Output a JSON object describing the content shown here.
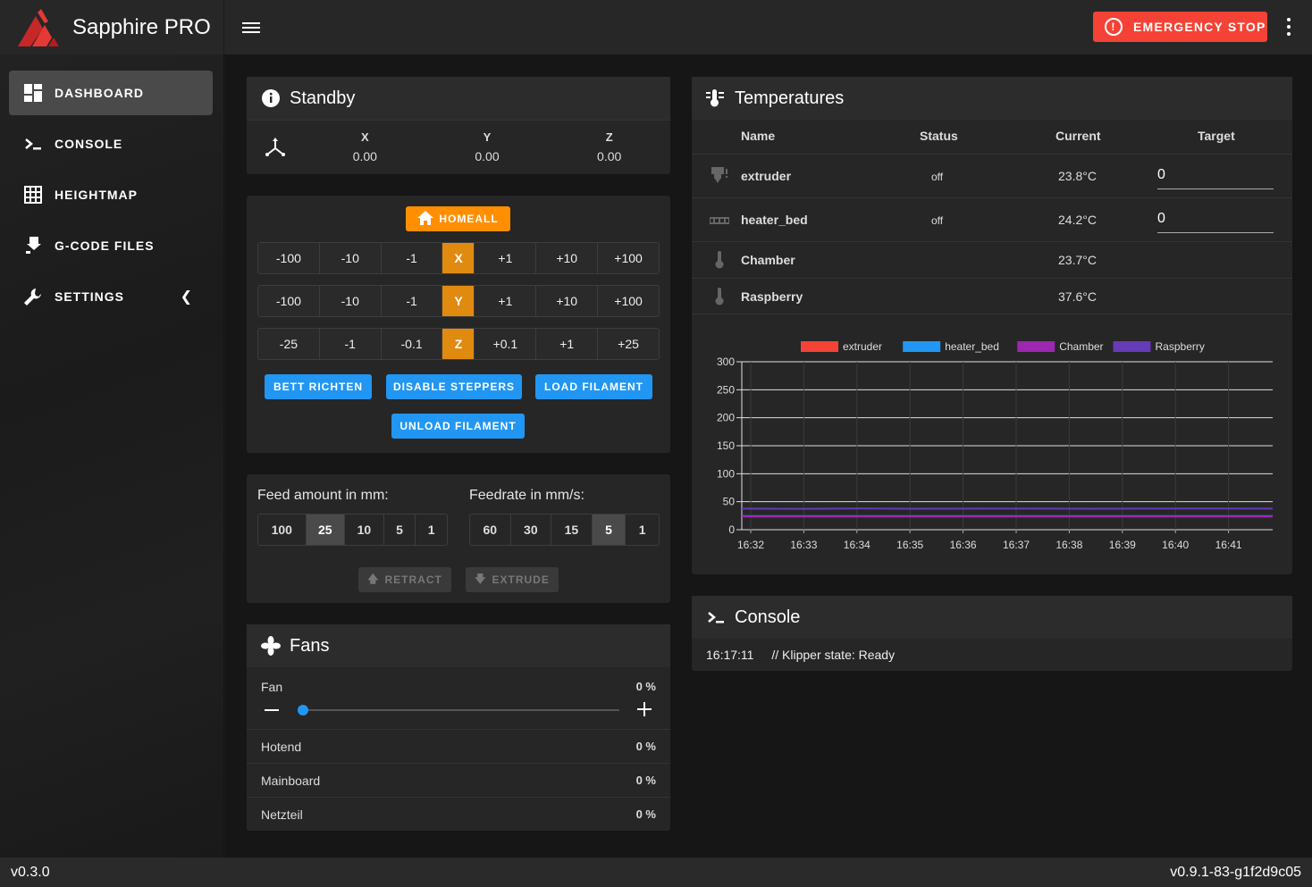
{
  "app": {
    "title": "Sapphire PRO",
    "emergency_stop": "EMERGENCY STOP"
  },
  "sidebar": {
    "items": [
      {
        "label": "DASHBOARD",
        "icon": "dashboard-icon"
      },
      {
        "label": "CONSOLE",
        "icon": "console-icon"
      },
      {
        "label": "HEIGHTMAP",
        "icon": "grid-icon"
      },
      {
        "label": "G-CODE FILES",
        "icon": "file-download-icon"
      },
      {
        "label": "SETTINGS",
        "icon": "wrench-icon"
      }
    ]
  },
  "footer": {
    "left": "v0.3.0",
    "right": "v0.9.1-83-g1f2d9c05"
  },
  "standby": {
    "title": "Standby",
    "axes": [
      {
        "label": "X",
        "value": "0.00"
      },
      {
        "label": "Y",
        "value": "0.00"
      },
      {
        "label": "Z",
        "value": "0.00"
      }
    ]
  },
  "control": {
    "homeall": "HOMEALL",
    "rows": [
      {
        "minus": [
          "-100",
          "-10",
          "-1"
        ],
        "axis": "X",
        "plus": [
          "+1",
          "+10",
          "+100"
        ]
      },
      {
        "minus": [
          "-100",
          "-10",
          "-1"
        ],
        "axis": "Y",
        "plus": [
          "+1",
          "+10",
          "+100"
        ]
      },
      {
        "minus": [
          "-25",
          "-1",
          "-0.1"
        ],
        "axis": "Z",
        "plus": [
          "+0.1",
          "+1",
          "+25"
        ]
      }
    ],
    "macros": [
      "BETT RICHTEN",
      "DISABLE STEPPERS",
      "LOAD FILAMENT",
      "UNLOAD FILAMENT"
    ]
  },
  "extrusion": {
    "feed_label": "Feed amount in mm:",
    "feed_options": [
      "100",
      "25",
      "10",
      "5",
      "1"
    ],
    "feed_selected": "25",
    "rate_label": "Feedrate in mm/s:",
    "rate_options": [
      "60",
      "30",
      "15",
      "5",
      "1"
    ],
    "rate_selected": "5",
    "retract": "RETRACT",
    "extrude": "EXTRUDE"
  },
  "fans": {
    "title": "Fans",
    "slider": {
      "name": "Fan",
      "value": "0 %",
      "fraction": 0
    },
    "rows": [
      {
        "name": "Hotend",
        "value": "0 %"
      },
      {
        "name": "Mainboard",
        "value": "0 %"
      },
      {
        "name": "Netzteil",
        "value": "0 %"
      }
    ]
  },
  "temperatures": {
    "title": "Temperatures",
    "headers": [
      "Name",
      "Status",
      "Current",
      "Target"
    ],
    "rows": [
      {
        "name": "extruder",
        "status": "off",
        "current": "23.8°C",
        "target": "0",
        "icon": "extruder-icon"
      },
      {
        "name": "heater_bed",
        "status": "off",
        "current": "24.2°C",
        "target": "0",
        "icon": "bed-icon"
      },
      {
        "name": "Chamber",
        "status": "",
        "current": "23.7°C",
        "target": "",
        "icon": "thermometer-icon"
      },
      {
        "name": "Raspberry",
        "status": "",
        "current": "37.6°C",
        "target": "",
        "icon": "thermometer-icon"
      }
    ]
  },
  "chart_data": {
    "type": "line",
    "x": [
      "16:32",
      "16:33",
      "16:34",
      "16:35",
      "16:36",
      "16:37",
      "16:38",
      "16:39",
      "16:40",
      "16:41"
    ],
    "yticks": [
      "300",
      "250",
      "200",
      "150",
      "100",
      "50",
      "0"
    ],
    "ylim": [
      0,
      300
    ],
    "legend_position": "top",
    "grid": true,
    "series": [
      {
        "name": "extruder",
        "color": "#f44336",
        "values": [
          23.8,
          23.8,
          23.8,
          23.8,
          23.8,
          23.8,
          23.8,
          23.8,
          23.8,
          23.8
        ]
      },
      {
        "name": "heater_bed",
        "color": "#2196f3",
        "values": [
          24.2,
          24.2,
          24.2,
          24.2,
          24.2,
          24.2,
          24.2,
          24.2,
          24.2,
          24.2
        ]
      },
      {
        "name": "Chamber",
        "color": "#9c27b0",
        "values": [
          23.7,
          23.7,
          23.7,
          23.7,
          23.7,
          23.7,
          23.7,
          23.7,
          23.7,
          23.7
        ]
      },
      {
        "name": "Raspberry",
        "color": "#673ab7",
        "values": [
          37.6,
          37.4,
          37.8,
          37.5,
          37.6,
          37.7,
          37.5,
          37.6,
          37.8,
          37.6
        ]
      }
    ]
  },
  "console": {
    "title": "Console",
    "time": "16:17:11",
    "message": "// Klipper state: Ready"
  }
}
